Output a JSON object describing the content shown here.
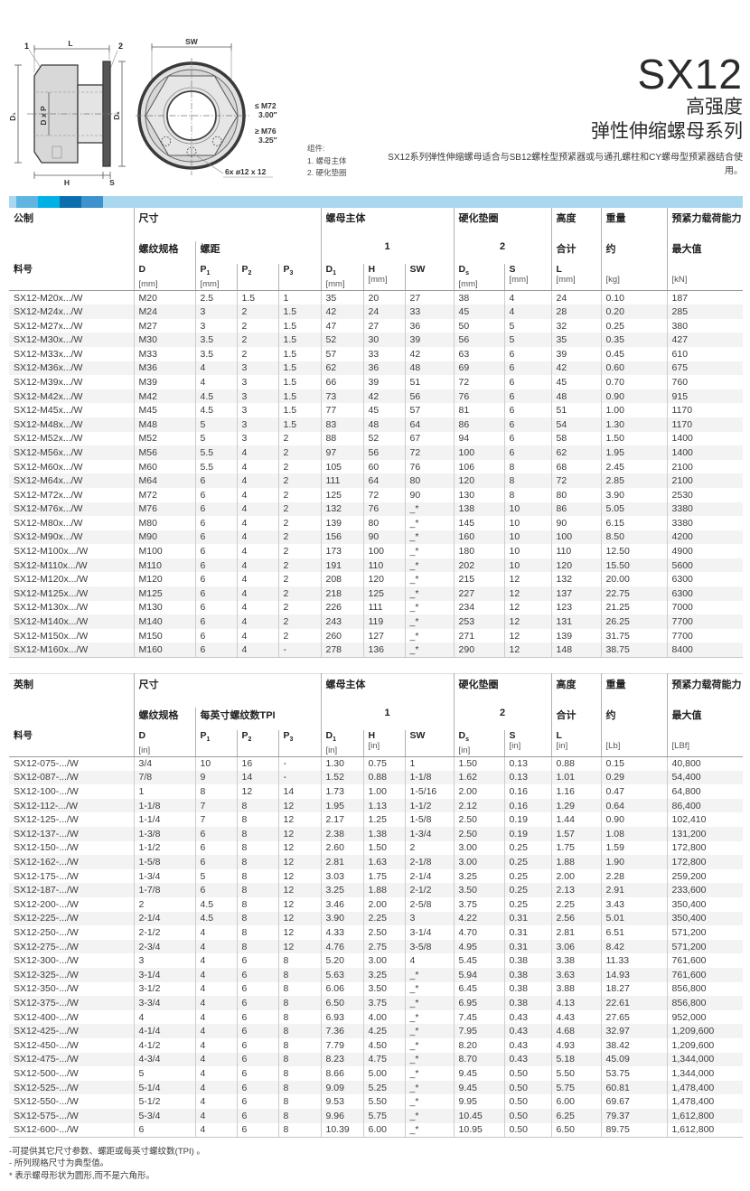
{
  "header": {
    "series": "SX12",
    "subtitle1": "高强度",
    "subtitle2": "弹性伸缩螺母系列",
    "description": "SX12系列弹性伸缩螺母适合与SB12螺栓型预紧器或与通孔螺柱和CY螺母型预紧器结合使用。"
  },
  "drawing": {
    "dim_l": "L",
    "dim_sw": "SW",
    "dim_d1": "D₁",
    "dim_dxp": "D x P",
    "dim_ds": "Dₛ",
    "dim_h": "H",
    "dim_s": "S",
    "callout1": "1",
    "callout2": "2",
    "size_small": "≤ M72",
    "size_small_in": "3.00″",
    "size_large": "≥ M76",
    "size_large_in": "3.25″",
    "holes": "6x ø12 x 12",
    "legend_title": "组件:",
    "legend_1": "1. 螺母主体",
    "legend_2": "2. 硬化垫圈"
  },
  "metric": {
    "title": "公制",
    "groups": {
      "size": "尺寸",
      "nut": "螺母主体",
      "washer": "硬化垫圈",
      "height": "高度",
      "weight": "重量",
      "preload": "预紧力载荷能力"
    },
    "sub": {
      "thread": "螺纹规格",
      "pitch": "螺距",
      "one": "1",
      "two": "2",
      "total": "合计",
      "approx": "约",
      "max": "最大值"
    },
    "cols": [
      {
        "l": "料号"
      },
      {
        "l": "D",
        "u": "[mm]"
      },
      {
        "l": "P",
        "sub": "1",
        "u": "[mm]"
      },
      {
        "l": "P",
        "sub": "2"
      },
      {
        "l": "P",
        "sub": "3"
      },
      {
        "l": "D",
        "sub": "1",
        "u": "[mm]"
      },
      {
        "l": "H",
        "u": "[mm]"
      },
      {
        "l": "SW"
      },
      {
        "l": "D",
        "sub": "s",
        "u": "[mm]"
      },
      {
        "l": "S",
        "u": "[mm]"
      },
      {
        "l": "L",
        "u": "[mm]"
      },
      {
        "u": "[kg]"
      },
      {
        "u": "[kN]"
      }
    ],
    "rows": [
      [
        "SX12-M20x.../W",
        "M20",
        "2.5",
        "1.5",
        "1",
        "35",
        "20",
        "27",
        "38",
        "4",
        "24",
        "0.10",
        "187"
      ],
      [
        "SX12-M24x.../W",
        "M24",
        "3",
        "2",
        "1.5",
        "42",
        "24",
        "33",
        "45",
        "4",
        "28",
        "0.20",
        "285"
      ],
      [
        "SX12-M27x.../W",
        "M27",
        "3",
        "2",
        "1.5",
        "47",
        "27",
        "36",
        "50",
        "5",
        "32",
        "0.25",
        "380"
      ],
      [
        "SX12-M30x.../W",
        "M30",
        "3.5",
        "2",
        "1.5",
        "52",
        "30",
        "39",
        "56",
        "5",
        "35",
        "0.35",
        "427"
      ],
      [
        "SX12-M33x.../W",
        "M33",
        "3.5",
        "2",
        "1.5",
        "57",
        "33",
        "42",
        "63",
        "6",
        "39",
        "0.45",
        "610"
      ],
      [
        "SX12-M36x.../W",
        "M36",
        "4",
        "3",
        "1.5",
        "62",
        "36",
        "48",
        "69",
        "6",
        "42",
        "0.60",
        "675"
      ],
      [
        "SX12-M39x.../W",
        "M39",
        "4",
        "3",
        "1.5",
        "66",
        "39",
        "51",
        "72",
        "6",
        "45",
        "0.70",
        "760"
      ],
      [
        "SX12-M42x.../W",
        "M42",
        "4.5",
        "3",
        "1.5",
        "73",
        "42",
        "56",
        "76",
        "6",
        "48",
        "0.90",
        "915"
      ],
      [
        "SX12-M45x.../W",
        "M45",
        "4.5",
        "3",
        "1.5",
        "77",
        "45",
        "57",
        "81",
        "6",
        "51",
        "1.00",
        "1170"
      ],
      [
        "SX12-M48x.../W",
        "M48",
        "5",
        "3",
        "1.5",
        "83",
        "48",
        "64",
        "86",
        "6",
        "54",
        "1.30",
        "1170"
      ],
      [
        "SX12-M52x.../W",
        "M52",
        "5",
        "3",
        "2",
        "88",
        "52",
        "67",
        "94",
        "6",
        "58",
        "1.50",
        "1400"
      ],
      [
        "SX12-M56x.../W",
        "M56",
        "5.5",
        "4",
        "2",
        "97",
        "56",
        "72",
        "100",
        "6",
        "62",
        "1.95",
        "1400"
      ],
      [
        "SX12-M60x.../W",
        "M60",
        "5.5",
        "4",
        "2",
        "105",
        "60",
        "76",
        "106",
        "8",
        "68",
        "2.45",
        "2100"
      ],
      [
        "SX12-M64x.../W",
        "M64",
        "6",
        "4",
        "2",
        "111",
        "64",
        "80",
        "120",
        "8",
        "72",
        "2.85",
        "2100"
      ],
      [
        "SX12-M72x.../W",
        "M72",
        "6",
        "4",
        "2",
        "125",
        "72",
        "90",
        "130",
        "8",
        "80",
        "3.90",
        "2530"
      ],
      [
        "SX12-M76x.../W",
        "M76",
        "6",
        "4",
        "2",
        "132",
        "76",
        "_*",
        "138",
        "10",
        "86",
        "5.05",
        "3380"
      ],
      [
        "SX12-M80x.../W",
        "M80",
        "6",
        "4",
        "2",
        "139",
        "80",
        "_*",
        "145",
        "10",
        "90",
        "6.15",
        "3380"
      ],
      [
        "SX12-M90x.../W",
        "M90",
        "6",
        "4",
        "2",
        "156",
        "90",
        "_*",
        "160",
        "10",
        "100",
        "8.50",
        "4200"
      ],
      [
        "SX12-M100x.../W",
        "M100",
        "6",
        "4",
        "2",
        "173",
        "100",
        "_*",
        "180",
        "10",
        "110",
        "12.50",
        "4900"
      ],
      [
        "SX12-M110x.../W",
        "M110",
        "6",
        "4",
        "2",
        "191",
        "110",
        "_*",
        "202",
        "10",
        "120",
        "15.50",
        "5600"
      ],
      [
        "SX12-M120x.../W",
        "M120",
        "6",
        "4",
        "2",
        "208",
        "120",
        "_*",
        "215",
        "12",
        "132",
        "20.00",
        "6300"
      ],
      [
        "SX12-M125x.../W",
        "M125",
        "6",
        "4",
        "2",
        "218",
        "125",
        "_*",
        "227",
        "12",
        "137",
        "22.75",
        "6300"
      ],
      [
        "SX12-M130x.../W",
        "M130",
        "6",
        "4",
        "2",
        "226",
        "111",
        "_*",
        "234",
        "12",
        "123",
        "21.25",
        "7000"
      ],
      [
        "SX12-M140x.../W",
        "M140",
        "6",
        "4",
        "2",
        "243",
        "119",
        "_*",
        "253",
        "12",
        "131",
        "26.25",
        "7700"
      ],
      [
        "SX12-M150x.../W",
        "M150",
        "6",
        "4",
        "2",
        "260",
        "127",
        "_*",
        "271",
        "12",
        "139",
        "31.75",
        "7700"
      ],
      [
        "SX12-M160x.../W",
        "M160",
        "6",
        "4",
        "-",
        "278",
        "136",
        "_*",
        "290",
        "12",
        "148",
        "38.75",
        "8400"
      ]
    ]
  },
  "imperial": {
    "title": "英制",
    "groups": {
      "size": "尺寸",
      "nut": "螺母主体",
      "washer": "硬化垫圈",
      "height": "高度",
      "weight": "重量",
      "preload": "预紧力载荷能力"
    },
    "sub": {
      "thread": "螺纹规格",
      "pitch": "每英寸螺纹数TPI",
      "one": "1",
      "two": "2",
      "total": "合计",
      "approx": "约",
      "max": "最大值"
    },
    "cols": [
      {
        "l": "料号"
      },
      {
        "l": "D",
        "u": "[in]"
      },
      {
        "l": "P",
        "sub": "1"
      },
      {
        "l": "P",
        "sub": "2"
      },
      {
        "l": "P",
        "sub": "3"
      },
      {
        "l": "D",
        "sub": "1",
        "u": "[in]"
      },
      {
        "l": "H",
        "u": "[in]"
      },
      {
        "l": "SW"
      },
      {
        "l": "D",
        "sub": "s",
        "u": "[in]"
      },
      {
        "l": "S",
        "u": "[in]"
      },
      {
        "l": "L",
        "u": "[in]"
      },
      {
        "u": "[Lb]"
      },
      {
        "u": "[LBf]"
      }
    ],
    "rows": [
      [
        "SX12-075-.../W",
        "3/4",
        "10",
        "16",
        "-",
        "1.30",
        "0.75",
        "1",
        "1.50",
        "0.13",
        "0.88",
        "0.15",
        "40,800"
      ],
      [
        "SX12-087-.../W",
        "7/8",
        "9",
        "14",
        "-",
        "1.52",
        "0.88",
        "1-1/8",
        "1.62",
        "0.13",
        "1.01",
        "0.29",
        "54,400"
      ],
      [
        "SX12-100-.../W",
        "1",
        "8",
        "12",
        "14",
        "1.73",
        "1.00",
        "1-5/16",
        "2.00",
        "0.16",
        "1.16",
        "0.47",
        "64,800"
      ],
      [
        "SX12-112-.../W",
        "1-1/8",
        "7",
        "8",
        "12",
        "1.95",
        "1.13",
        "1-1/2",
        "2.12",
        "0.16",
        "1.29",
        "0.64",
        "86,400"
      ],
      [
        "SX12-125-.../W",
        "1-1/4",
        "7",
        "8",
        "12",
        "2.17",
        "1.25",
        "1-5/8",
        "2.50",
        "0.19",
        "1.44",
        "0.90",
        "102,410"
      ],
      [
        "SX12-137-.../W",
        "1-3/8",
        "6",
        "8",
        "12",
        "2.38",
        "1.38",
        "1-3/4",
        "2.50",
        "0.19",
        "1.57",
        "1.08",
        "131,200"
      ],
      [
        "SX12-150-.../W",
        "1-1/2",
        "6",
        "8",
        "12",
        "2.60",
        "1.50",
        "2",
        "3.00",
        "0.25",
        "1.75",
        "1.59",
        "172,800"
      ],
      [
        "SX12-162-.../W",
        "1-5/8",
        "6",
        "8",
        "12",
        "2.81",
        "1.63",
        "2-1/8",
        "3.00",
        "0.25",
        "1.88",
        "1.90",
        "172,800"
      ],
      [
        "SX12-175-.../W",
        "1-3/4",
        "5",
        "8",
        "12",
        "3.03",
        "1.75",
        "2-1/4",
        "3.25",
        "0.25",
        "2.00",
        "2.28",
        "259,200"
      ],
      [
        "SX12-187-.../W",
        "1-7/8",
        "6",
        "8",
        "12",
        "3.25",
        "1.88",
        "2-1/2",
        "3.50",
        "0.25",
        "2.13",
        "2.91",
        "233,600"
      ],
      [
        "SX12-200-.../W",
        "2",
        "4.5",
        "8",
        "12",
        "3.46",
        "2.00",
        "2-5/8",
        "3.75",
        "0.25",
        "2.25",
        "3.43",
        "350,400"
      ],
      [
        "SX12-225-.../W",
        "2-1/4",
        "4.5",
        "8",
        "12",
        "3.90",
        "2.25",
        "3",
        "4.22",
        "0.31",
        "2.56",
        "5.01",
        "350,400"
      ],
      [
        "SX12-250-.../W",
        "2-1/2",
        "4",
        "8",
        "12",
        "4.33",
        "2.50",
        "3-1/4",
        "4.70",
        "0.31",
        "2.81",
        "6.51",
        "571,200"
      ],
      [
        "SX12-275-.../W",
        "2-3/4",
        "4",
        "8",
        "12",
        "4.76",
        "2.75",
        "3-5/8",
        "4.95",
        "0.31",
        "3.06",
        "8.42",
        "571,200"
      ],
      [
        "SX12-300-.../W",
        "3",
        "4",
        "6",
        "8",
        "5.20",
        "3.00",
        "4",
        "5.45",
        "0.38",
        "3.38",
        "11.33",
        "761,600"
      ],
      [
        "SX12-325-.../W",
        "3-1/4",
        "4",
        "6",
        "8",
        "5.63",
        "3.25",
        "_*",
        "5.94",
        "0.38",
        "3.63",
        "14.93",
        "761,600"
      ],
      [
        "SX12-350-.../W",
        "3-1/2",
        "4",
        "6",
        "8",
        "6.06",
        "3.50",
        "_*",
        "6.45",
        "0.38",
        "3.88",
        "18.27",
        "856,800"
      ],
      [
        "SX12-375-.../W",
        "3-3/4",
        "4",
        "6",
        "8",
        "6.50",
        "3.75",
        "_*",
        "6.95",
        "0.38",
        "4.13",
        "22.61",
        "856,800"
      ],
      [
        "SX12-400-.../W",
        "4",
        "4",
        "6",
        "8",
        "6.93",
        "4.00",
        "_*",
        "7.45",
        "0.43",
        "4.43",
        "27.65",
        "952,000"
      ],
      [
        "SX12-425-.../W",
        "4-1/4",
        "4",
        "6",
        "8",
        "7.36",
        "4.25",
        "_*",
        "7.95",
        "0.43",
        "4.68",
        "32.97",
        "1,209,600"
      ],
      [
        "SX12-450-.../W",
        "4-1/2",
        "4",
        "6",
        "8",
        "7.79",
        "4.50",
        "_*",
        "8.20",
        "0.43",
        "4.93",
        "38.42",
        "1,209,600"
      ],
      [
        "SX12-475-.../W",
        "4-3/4",
        "4",
        "6",
        "8",
        "8.23",
        "4.75",
        "_*",
        "8.70",
        "0.43",
        "5.18",
        "45.09",
        "1,344,000"
      ],
      [
        "SX12-500-.../W",
        "5",
        "4",
        "6",
        "8",
        "8.66",
        "5.00",
        "_*",
        "9.45",
        "0.50",
        "5.50",
        "53.75",
        "1,344,000"
      ],
      [
        "SX12-525-.../W",
        "5-1/4",
        "4",
        "6",
        "8",
        "9.09",
        "5.25",
        "_*",
        "9.45",
        "0.50",
        "5.75",
        "60.81",
        "1,478,400"
      ],
      [
        "SX12-550-.../W",
        "5-1/2",
        "4",
        "6",
        "8",
        "9.53",
        "5.50",
        "_*",
        "9.95",
        "0.50",
        "6.00",
        "69.67",
        "1,478,400"
      ],
      [
        "SX12-575-.../W",
        "5-3/4",
        "4",
        "6",
        "8",
        "9.96",
        "5.75",
        "_*",
        "10.45",
        "0.50",
        "6.25",
        "79.37",
        "1,612,800"
      ],
      [
        "SX12-600-.../W",
        "6",
        "4",
        "6",
        "8",
        "10.39",
        "6.00",
        "_*",
        "10.95",
        "0.50",
        "6.50",
        "89.75",
        "1,612,800"
      ]
    ]
  },
  "footnotes": [
    "-可提供其它尺寸参数、螺距或每英寸螺纹数(TPI) 。",
    "- 所列规格尺寸为典型值。",
    "* 表示螺母形状为圆形,而不是六角形。"
  ]
}
